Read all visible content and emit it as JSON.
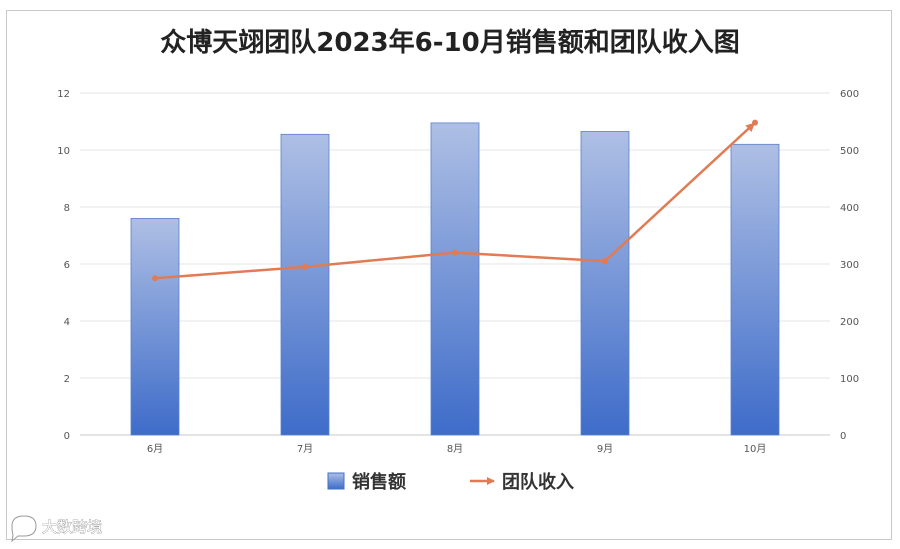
{
  "chart_data": {
    "type": "bar",
    "title": "众博天翊团队2023年6-10月销售额和团队收入图",
    "categories": [
      "6月",
      "7月",
      "8月",
      "9月",
      "10月"
    ],
    "series": [
      {
        "name": "销售额",
        "type": "bar",
        "axis": "left",
        "values": [
          7.6,
          10.55,
          10.95,
          10.65,
          10.2
        ],
        "color": "#4472c4"
      },
      {
        "name": "团队收入",
        "type": "line",
        "axis": "right",
        "values": [
          275,
          295,
          320,
          305,
          548
        ],
        "color": "#e07b54"
      }
    ],
    "y_left": {
      "min": 0,
      "max": 12,
      "ticks": [
        0,
        2,
        4,
        6,
        8,
        10,
        12
      ]
    },
    "y_right": {
      "min": 0,
      "max": 600,
      "ticks": [
        0,
        100,
        200,
        300,
        400,
        500,
        600
      ]
    },
    "grid": true,
    "legend": "bottom-center"
  },
  "watermark": {
    "icon": "speech-bubble-icon",
    "text": "大数跨境"
  }
}
